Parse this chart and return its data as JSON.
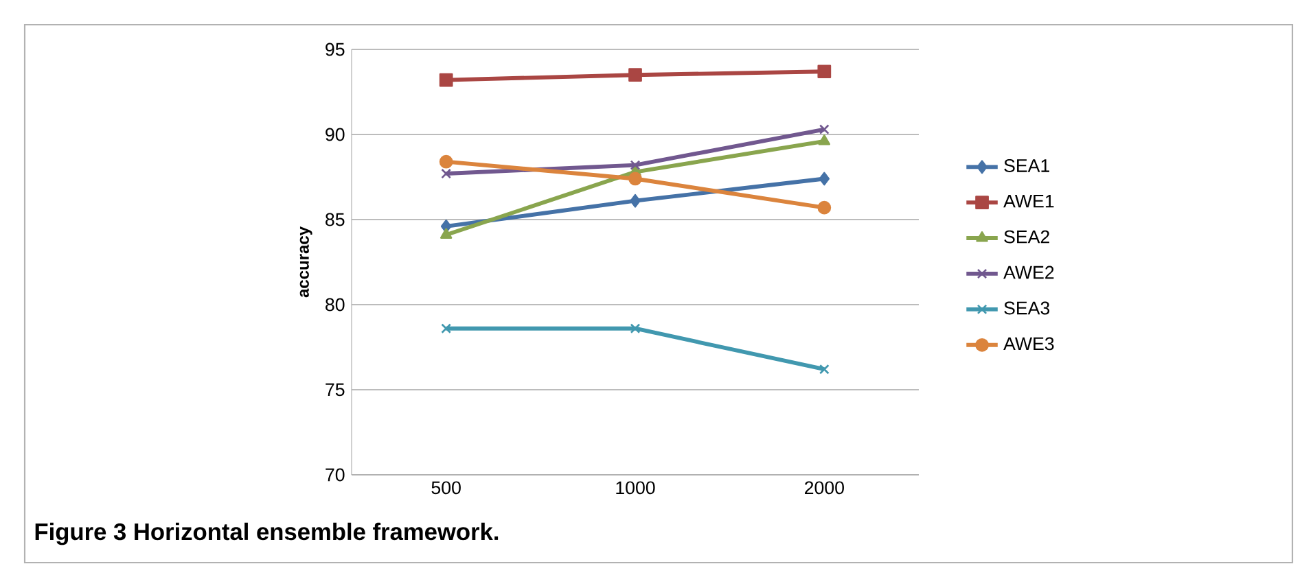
{
  "chart_data": {
    "type": "line",
    "ylabel": "accuracy",
    "categories": [
      "500",
      "1000",
      "2000"
    ],
    "series": [
      {
        "name": "SEA1",
        "color": "#4572a7",
        "marker": "diamond",
        "values": [
          84.6,
          86.1,
          87.4
        ]
      },
      {
        "name": "AWE1",
        "color": "#aa4643",
        "marker": "square",
        "values": [
          93.2,
          93.5,
          93.7
        ]
      },
      {
        "name": "SEA2",
        "color": "#89a54e",
        "marker": "triangle",
        "values": [
          84.1,
          87.8,
          89.6
        ]
      },
      {
        "name": "AWE2",
        "color": "#71588f",
        "marker": "cross",
        "values": [
          87.7,
          88.2,
          90.3
        ]
      },
      {
        "name": "SEA3",
        "color": "#4198af",
        "marker": "cross",
        "values": [
          78.6,
          78.6,
          76.2
        ]
      },
      {
        "name": "AWE3",
        "color": "#db843d",
        "marker": "circle",
        "values": [
          88.4,
          87.4,
          85.7
        ]
      }
    ],
    "ylim": [
      70,
      95
    ],
    "yticks": [
      70,
      75,
      80,
      85,
      90,
      95
    ],
    "grid": "y",
    "legend": "right",
    "line_style": "solid",
    "annotations": [
      "Figure 3 Horizontal ensemble framework."
    ]
  }
}
